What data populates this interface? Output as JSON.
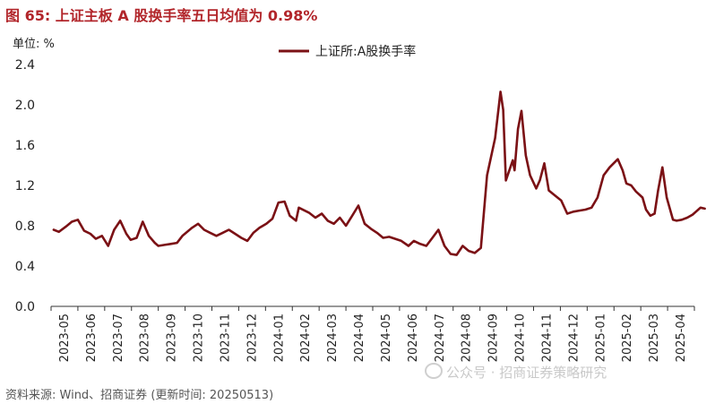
{
  "header": {
    "title": "图 65:  上证主板 A 股换手率五日均值为 0.98%",
    "unit": "单位: %"
  },
  "footer": {
    "source": "资料来源: Wind、招商证券 (更新时间: 20250513)",
    "watermark": "公众号 · 招商证券策略研究"
  },
  "colors": {
    "series": "#7b1115",
    "title": "#b2262b"
  },
  "chart_data": {
    "type": "line",
    "title": "上证主板 A 股换手率五日均值为 0.98%",
    "ylabel": "单位: %",
    "xlabel": "",
    "ylim": [
      0.0,
      2.4
    ],
    "yticks": [
      "0.0",
      "0.4",
      "0.8",
      "1.2",
      "1.6",
      "2.0",
      "2.4"
    ],
    "xticks": [
      "2023-05",
      "2023-06",
      "2023-07",
      "2023-08",
      "2023-09",
      "2023-10",
      "2023-11",
      "2023-12",
      "2024-01",
      "2024-02",
      "2024-03",
      "2024-04",
      "2024-05",
      "2024-06",
      "2024-07",
      "2024-08",
      "2024-09",
      "2024-10",
      "2024-11",
      "2024-12",
      "2025-01",
      "2025-02",
      "2025-03",
      "2025-04"
    ],
    "legend": {
      "position": "top-center"
    },
    "grid": false,
    "series": [
      {
        "name": "上证所:A股换手率",
        "x": [
          "2023-05-04",
          "2023-05-10",
          "2023-05-18",
          "2023-05-25",
          "2023-06-01",
          "2023-06-08",
          "2023-06-15",
          "2023-06-21",
          "2023-06-28",
          "2023-07-05",
          "2023-07-12",
          "2023-07-19",
          "2023-07-26",
          "2023-07-31",
          "2023-08-07",
          "2023-08-14",
          "2023-08-21",
          "2023-08-28",
          "2023-09-01",
          "2023-09-08",
          "2023-09-15",
          "2023-09-22",
          "2023-09-28",
          "2023-10-09",
          "2023-10-16",
          "2023-10-23",
          "2023-10-30",
          "2023-11-06",
          "2023-11-13",
          "2023-11-20",
          "2023-11-27",
          "2023-12-04",
          "2023-12-11",
          "2023-12-18",
          "2023-12-25",
          "2024-01-02",
          "2024-01-09",
          "2024-01-16",
          "2024-01-23",
          "2024-01-29",
          "2024-02-05",
          "2024-02-08",
          "2024-02-19",
          "2024-02-26",
          "2024-03-04",
          "2024-03-11",
          "2024-03-18",
          "2024-03-25",
          "2024-04-01",
          "2024-04-08",
          "2024-04-15",
          "2024-04-22",
          "2024-04-29",
          "2024-05-06",
          "2024-05-13",
          "2024-05-20",
          "2024-05-27",
          "2024-06-03",
          "2024-06-11",
          "2024-06-17",
          "2024-06-24",
          "2024-07-01",
          "2024-07-08",
          "2024-07-15",
          "2024-07-22",
          "2024-07-29",
          "2024-08-05",
          "2024-08-12",
          "2024-08-19",
          "2024-08-26",
          "2024-09-02",
          "2024-09-09",
          "2024-09-18",
          "2024-09-24",
          "2024-09-27",
          "2024-09-30",
          "2024-10-08",
          "2024-10-10",
          "2024-10-14",
          "2024-10-18",
          "2024-10-23",
          "2024-10-28",
          "2024-11-04",
          "2024-11-08",
          "2024-11-13",
          "2024-11-18",
          "2024-11-25",
          "2024-12-02",
          "2024-12-09",
          "2024-12-16",
          "2024-12-23",
          "2024-12-30",
          "2025-01-06",
          "2025-01-13",
          "2025-01-20",
          "2025-01-27",
          "2025-02-05",
          "2025-02-10",
          "2025-02-14",
          "2025-02-19",
          "2025-02-24",
          "2025-03-03",
          "2025-03-07",
          "2025-03-12",
          "2025-03-17",
          "2025-03-21",
          "2025-03-26",
          "2025-03-31",
          "2025-04-07",
          "2025-04-11",
          "2025-04-17",
          "2025-04-23",
          "2025-04-29",
          "2025-05-08",
          "2025-05-13"
        ],
        "values": [
          0.76,
          0.74,
          0.79,
          0.84,
          0.86,
          0.75,
          0.72,
          0.67,
          0.7,
          0.6,
          0.76,
          0.85,
          0.72,
          0.66,
          0.68,
          0.84,
          0.7,
          0.63,
          0.6,
          0.61,
          0.62,
          0.63,
          0.7,
          0.78,
          0.82,
          0.76,
          0.73,
          0.7,
          0.73,
          0.76,
          0.72,
          0.68,
          0.65,
          0.73,
          0.78,
          0.82,
          0.87,
          1.03,
          1.04,
          0.9,
          0.85,
          0.98,
          0.93,
          0.88,
          0.92,
          0.85,
          0.82,
          0.88,
          0.8,
          0.9,
          1.0,
          0.82,
          0.77,
          0.73,
          0.68,
          0.69,
          0.67,
          0.65,
          0.6,
          0.65,
          0.62,
          0.6,
          0.68,
          0.76,
          0.6,
          0.52,
          0.51,
          0.6,
          0.55,
          0.53,
          0.58,
          1.3,
          1.67,
          2.13,
          1.95,
          1.25,
          1.45,
          1.35,
          1.76,
          1.94,
          1.5,
          1.3,
          1.17,
          1.25,
          1.42,
          1.15,
          1.1,
          1.05,
          0.92,
          0.94,
          0.95,
          0.96,
          0.98,
          1.08,
          1.3,
          1.38,
          1.46,
          1.35,
          1.22,
          1.2,
          1.14,
          1.08,
          0.96,
          0.9,
          0.92,
          1.15,
          1.38,
          1.08,
          0.86,
          0.85,
          0.86,
          0.88,
          0.91,
          0.98,
          0.97
        ]
      }
    ]
  }
}
